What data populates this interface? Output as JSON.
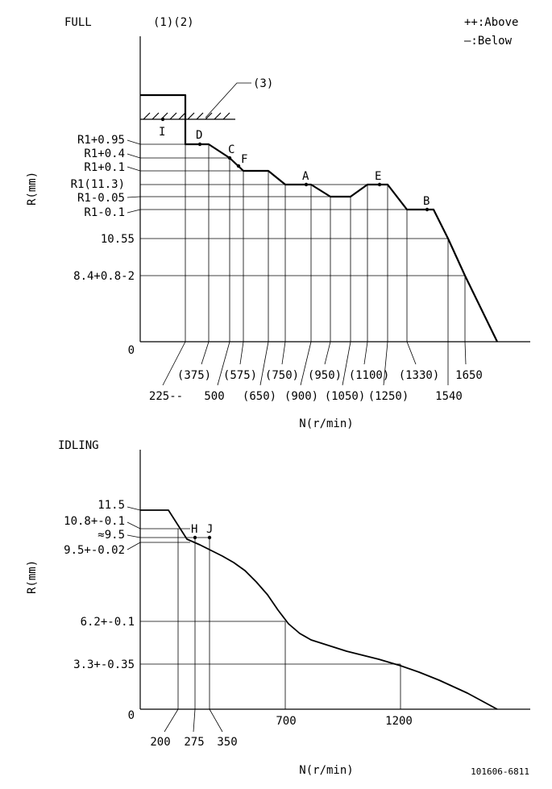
{
  "full_chart": {
    "title": "FULL",
    "note_1_2": "(1)(2)",
    "note_3": "(3)",
    "legend": {
      "above": "++:Above",
      "below": "—:Below"
    },
    "ylabel": "R(mm)",
    "xlabel": "N(r/min)",
    "zero_label": "0",
    "y_labels": [
      "R1+0.95",
      "R1+0.4",
      "R1+0.1",
      "R1(11.3)",
      "R1-0.05",
      "R1-0.1",
      "10.55",
      "8.4+0.8-2"
    ],
    "x_labels_upper": [
      "(375)",
      "(575)",
      "(750)",
      "(950)",
      "(1100)",
      "(1330)",
      "1650"
    ],
    "x_labels_lower": [
      "225--",
      "500",
      "(650)",
      "(900)",
      "(1050)",
      "(1250)",
      "1540"
    ],
    "point_labels": [
      "I",
      "D",
      "C",
      "F",
      "A",
      "E",
      "B"
    ]
  },
  "idle_chart": {
    "title": "IDLING",
    "ylabel": "R(mm)",
    "xlabel": "N(r/min)",
    "zero_label": "0",
    "y_labels": [
      "11.5",
      "10.8+-0.1",
      "≈9.5",
      "9.5+-0.02",
      "6.2+-0.1",
      "3.3+-0.35"
    ],
    "x_labels": [
      "200",
      "275",
      "350",
      "700",
      "1200"
    ],
    "point_labels": [
      "H",
      "J"
    ]
  },
  "footer": {
    "doc_id": "101606-6811"
  },
  "chart_data": [
    {
      "type": "line",
      "title": "FULL",
      "xlabel": "N(r/min)",
      "ylabel": "R(mm)",
      "x_ticks": [
        225,
        375,
        500,
        575,
        650,
        750,
        900,
        950,
        1050,
        1100,
        1250,
        1330,
        1540,
        1650
      ],
      "y_ticks": [
        "R1+0.95",
        "R1+0.4",
        "R1+0.1",
        "R1(11.3)",
        "R1-0.05",
        "R1-0.1",
        "10.55",
        "8.4+0.8-2"
      ],
      "points": [
        {
          "label": "I",
          "x": 225,
          "y": "R1+0.95"
        },
        {
          "label": "D",
          "x": 375,
          "y": "R1+0.95"
        },
        {
          "label": "C",
          "x": 575,
          "y": "R1+0.4"
        },
        {
          "label": "F",
          "x": 650,
          "y": "R1+0.1"
        },
        {
          "label": "A",
          "x": 950,
          "y": "R1(11.3)"
        },
        {
          "label": "E",
          "x": 1250,
          "y": "R1(11.3)"
        },
        {
          "label": "B",
          "x": 1540,
          "y": "R1-0.1"
        }
      ],
      "annotations": [
        "(1)(2)",
        "(3)",
        "++:Above",
        "—:Below"
      ],
      "grid": true
    },
    {
      "type": "line",
      "title": "IDLING",
      "xlabel": "N(r/min)",
      "ylabel": "R(mm)",
      "x_ticks": [
        200,
        275,
        350,
        700,
        1200
      ],
      "y_ticks": [
        "11.5",
        "10.8+-0.1",
        "≈9.5",
        "9.5+-0.02",
        "6.2+-0.1",
        "3.3+-0.35"
      ],
      "points": [
        {
          "label": "H",
          "x": 275,
          "y": "≈9.5"
        },
        {
          "label": "J",
          "x": 350,
          "y": "≈9.5"
        }
      ],
      "grid": true
    }
  ]
}
